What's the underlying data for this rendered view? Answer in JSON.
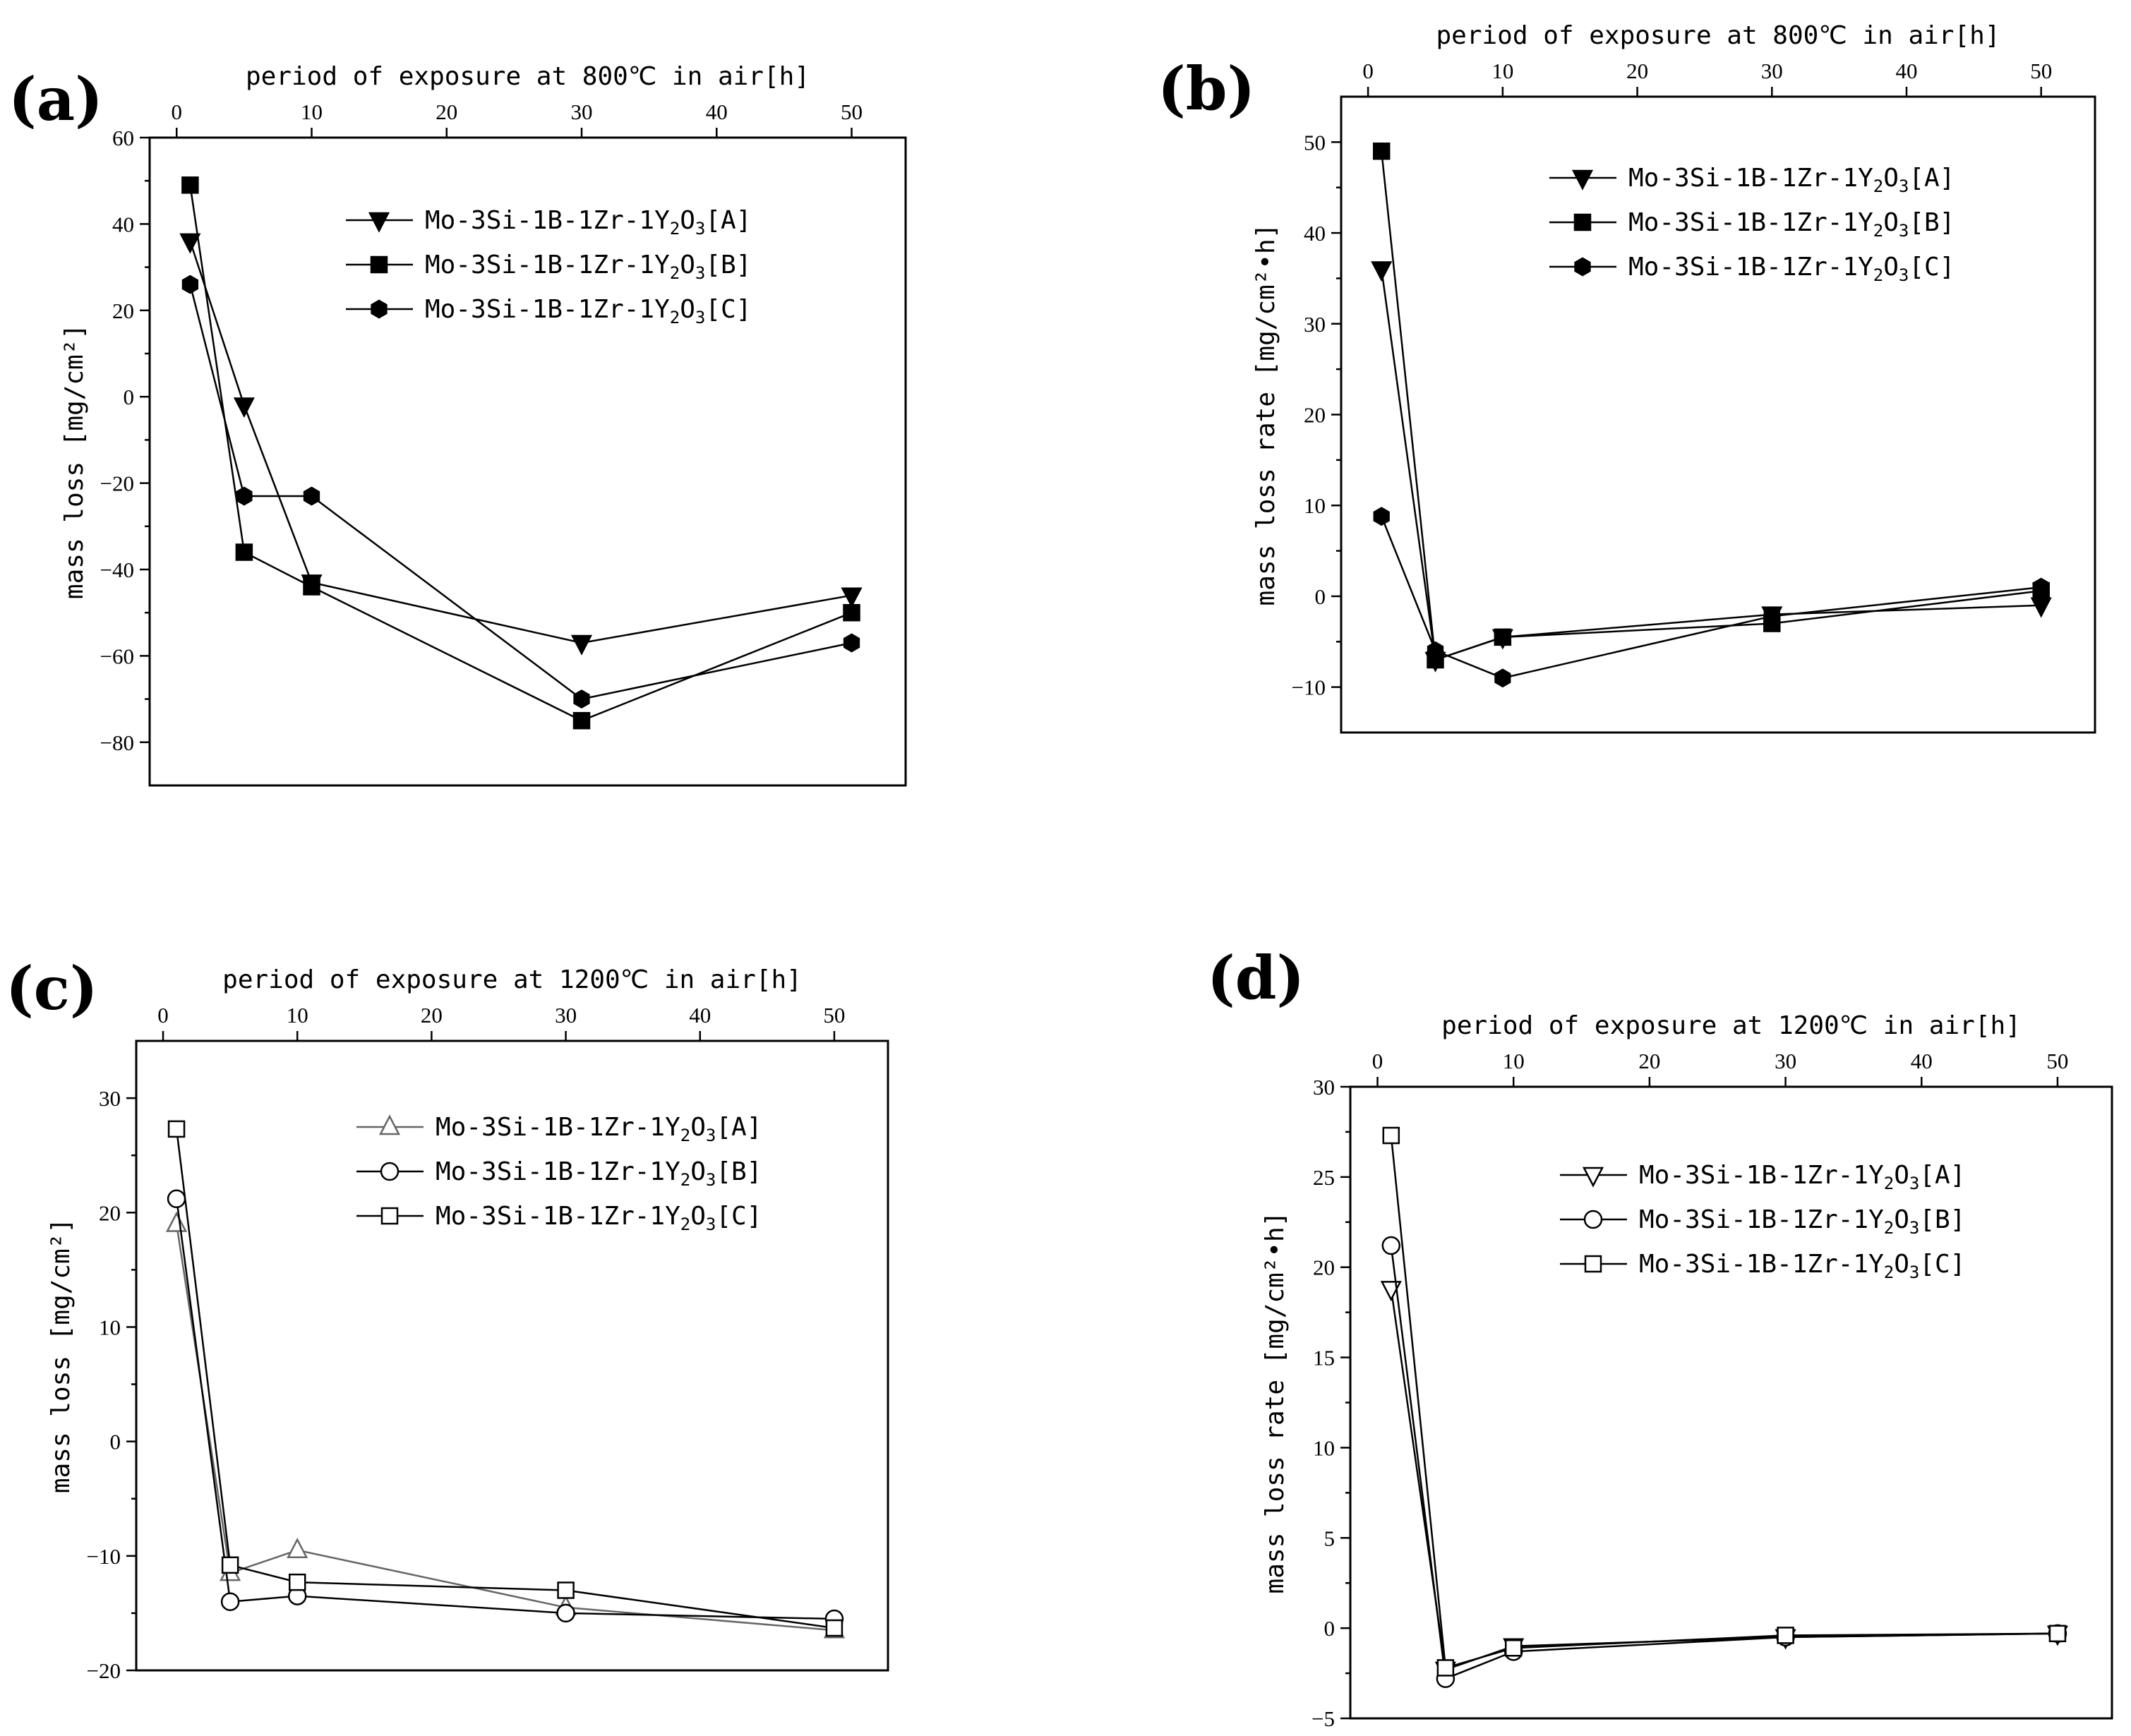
{
  "chart_data": [
    {
      "panel": "(a)",
      "type": "line",
      "title": "period of exposure at 800℃ in air[h]",
      "xlabel": "period of exposure at 800℃ in air[h]",
      "ylabel": "mass loss [mg/cm²]",
      "xlim": [
        -2,
        54
      ],
      "ylim": [
        -90,
        60
      ],
      "xticks": [
        0,
        10,
        20,
        30,
        40,
        50
      ],
      "yticks": [
        60,
        40,
        20,
        0,
        -20,
        -40,
        -60,
        -80
      ],
      "legend_position": "top-right",
      "series": [
        {
          "name": "Mo-3Si-1B-1Zr-1Y2O3[A]",
          "marker": "triangle-down",
          "filled": true,
          "color": "#000000",
          "x": [
            1,
            5,
            10,
            30,
            50
          ],
          "y": [
            36,
            -2,
            -43,
            -57,
            -46
          ]
        },
        {
          "name": "Mo-3Si-1B-1Zr-1Y2O3[B]",
          "marker": "square",
          "filled": true,
          "color": "#000000",
          "x": [
            1,
            5,
            10,
            30,
            50
          ],
          "y": [
            49,
            -36,
            -44,
            -75,
            -50
          ]
        },
        {
          "name": "Mo-3Si-1B-1Zr-1Y2O3[C]",
          "marker": "hexagon",
          "filled": true,
          "color": "#000000",
          "x": [
            1,
            5,
            10,
            30,
            50
          ],
          "y": [
            26,
            -23,
            -23,
            -70,
            -57
          ]
        }
      ]
    },
    {
      "panel": "(b)",
      "type": "line",
      "title": "period of exposure at 800℃ in air[h]",
      "xlabel": "period of exposure at 800℃ in air[h]",
      "ylabel": "mass loss rate [mg/cm²•h]",
      "xlim": [
        -2,
        54
      ],
      "ylim": [
        -15,
        55
      ],
      "xticks": [
        0,
        10,
        20,
        30,
        40,
        50
      ],
      "yticks": [
        50,
        40,
        30,
        20,
        10,
        0,
        -10
      ],
      "legend_position": "top-right",
      "series": [
        {
          "name": "Mo-3Si-1B-1Zr-1Y2O3[A]",
          "marker": "triangle-down",
          "filled": true,
          "color": "#000000",
          "x": [
            1,
            5,
            10,
            30,
            50
          ],
          "y": [
            36,
            -7,
            -4.5,
            -2,
            -1
          ]
        },
        {
          "name": "Mo-3Si-1B-1Zr-1Y2O3[B]",
          "marker": "square",
          "filled": true,
          "color": "#000000",
          "x": [
            1,
            5,
            10,
            30,
            50
          ],
          "y": [
            49,
            -7,
            -4.5,
            -3,
            0.6
          ]
        },
        {
          "name": "Mo-3Si-1B-1Zr-1Y2O3[C]",
          "marker": "hexagon",
          "filled": true,
          "color": "#000000",
          "x": [
            1,
            5,
            10,
            30,
            50
          ],
          "y": [
            8.8,
            -6,
            -9,
            -2.2,
            1
          ]
        }
      ]
    },
    {
      "panel": "(c)",
      "type": "line",
      "title": "period of exposure at 1200℃ in air[h]",
      "xlabel": "period of exposure at 1200℃ in air[h]",
      "ylabel": "mass loss [mg/cm²]",
      "xlim": [
        -2,
        54
      ],
      "ylim": [
        -20,
        35
      ],
      "xticks": [
        0,
        10,
        20,
        30,
        40,
        50
      ],
      "yticks": [
        30,
        20,
        10,
        0,
        -10,
        -20
      ],
      "legend_position": "top-right",
      "series": [
        {
          "name": "Mo-3Si-1B-1Zr-1Y2O3[A]",
          "marker": "triangle-up",
          "filled": false,
          "color": "#666666",
          "x": [
            1,
            5,
            10,
            30,
            50
          ],
          "y": [
            19,
            -11.5,
            -9.5,
            -14.5,
            -16.5
          ]
        },
        {
          "name": "Mo-3Si-1B-1Zr-1Y2O3[B]",
          "marker": "circle",
          "filled": false,
          "color": "#000000",
          "x": [
            1,
            5,
            10,
            30,
            50
          ],
          "y": [
            21.2,
            -14,
            -13.5,
            -15,
            -15.5
          ]
        },
        {
          "name": "Mo-3Si-1B-1Zr-1Y2O3[C]",
          "marker": "square",
          "filled": false,
          "color": "#000000",
          "x": [
            1,
            5,
            10,
            30,
            50
          ],
          "y": [
            27.3,
            -10.8,
            -12.3,
            -13,
            -16.3
          ]
        }
      ]
    },
    {
      "panel": "(d)",
      "type": "line",
      "title": "period of exposure at 1200℃ in air[h]",
      "xlabel": "period of exposure at 1200℃ in air[h]",
      "ylabel": "mass loss rate [mg/cm²•h]",
      "xlim": [
        -2,
        54
      ],
      "ylim": [
        -5,
        30
      ],
      "xticks": [
        0,
        10,
        20,
        30,
        40,
        50
      ],
      "yticks": [
        30,
        25,
        20,
        15,
        10,
        5,
        0,
        -5
      ],
      "legend_position": "top-right",
      "series": [
        {
          "name": "Mo-3Si-1B-1Zr-1Y2O3[A]",
          "marker": "triangle-down",
          "filled": false,
          "color": "#000000",
          "x": [
            1,
            5,
            10,
            30,
            50
          ],
          "y": [
            18.8,
            -2.3,
            -1,
            -0.5,
            -0.3
          ]
        },
        {
          "name": "Mo-3Si-1B-1Zr-1Y2O3[B]",
          "marker": "circle",
          "filled": false,
          "color": "#000000",
          "x": [
            1,
            5,
            10,
            30,
            50
          ],
          "y": [
            21.2,
            -2.8,
            -1.3,
            -0.5,
            -0.3
          ]
        },
        {
          "name": "Mo-3Si-1B-1Zr-1Y2O3[C]",
          "marker": "square",
          "filled": false,
          "color": "#000000",
          "x": [
            1,
            5,
            10,
            30,
            50
          ],
          "y": [
            27.3,
            -2.2,
            -1.1,
            -0.4,
            -0.3
          ]
        }
      ]
    }
  ]
}
